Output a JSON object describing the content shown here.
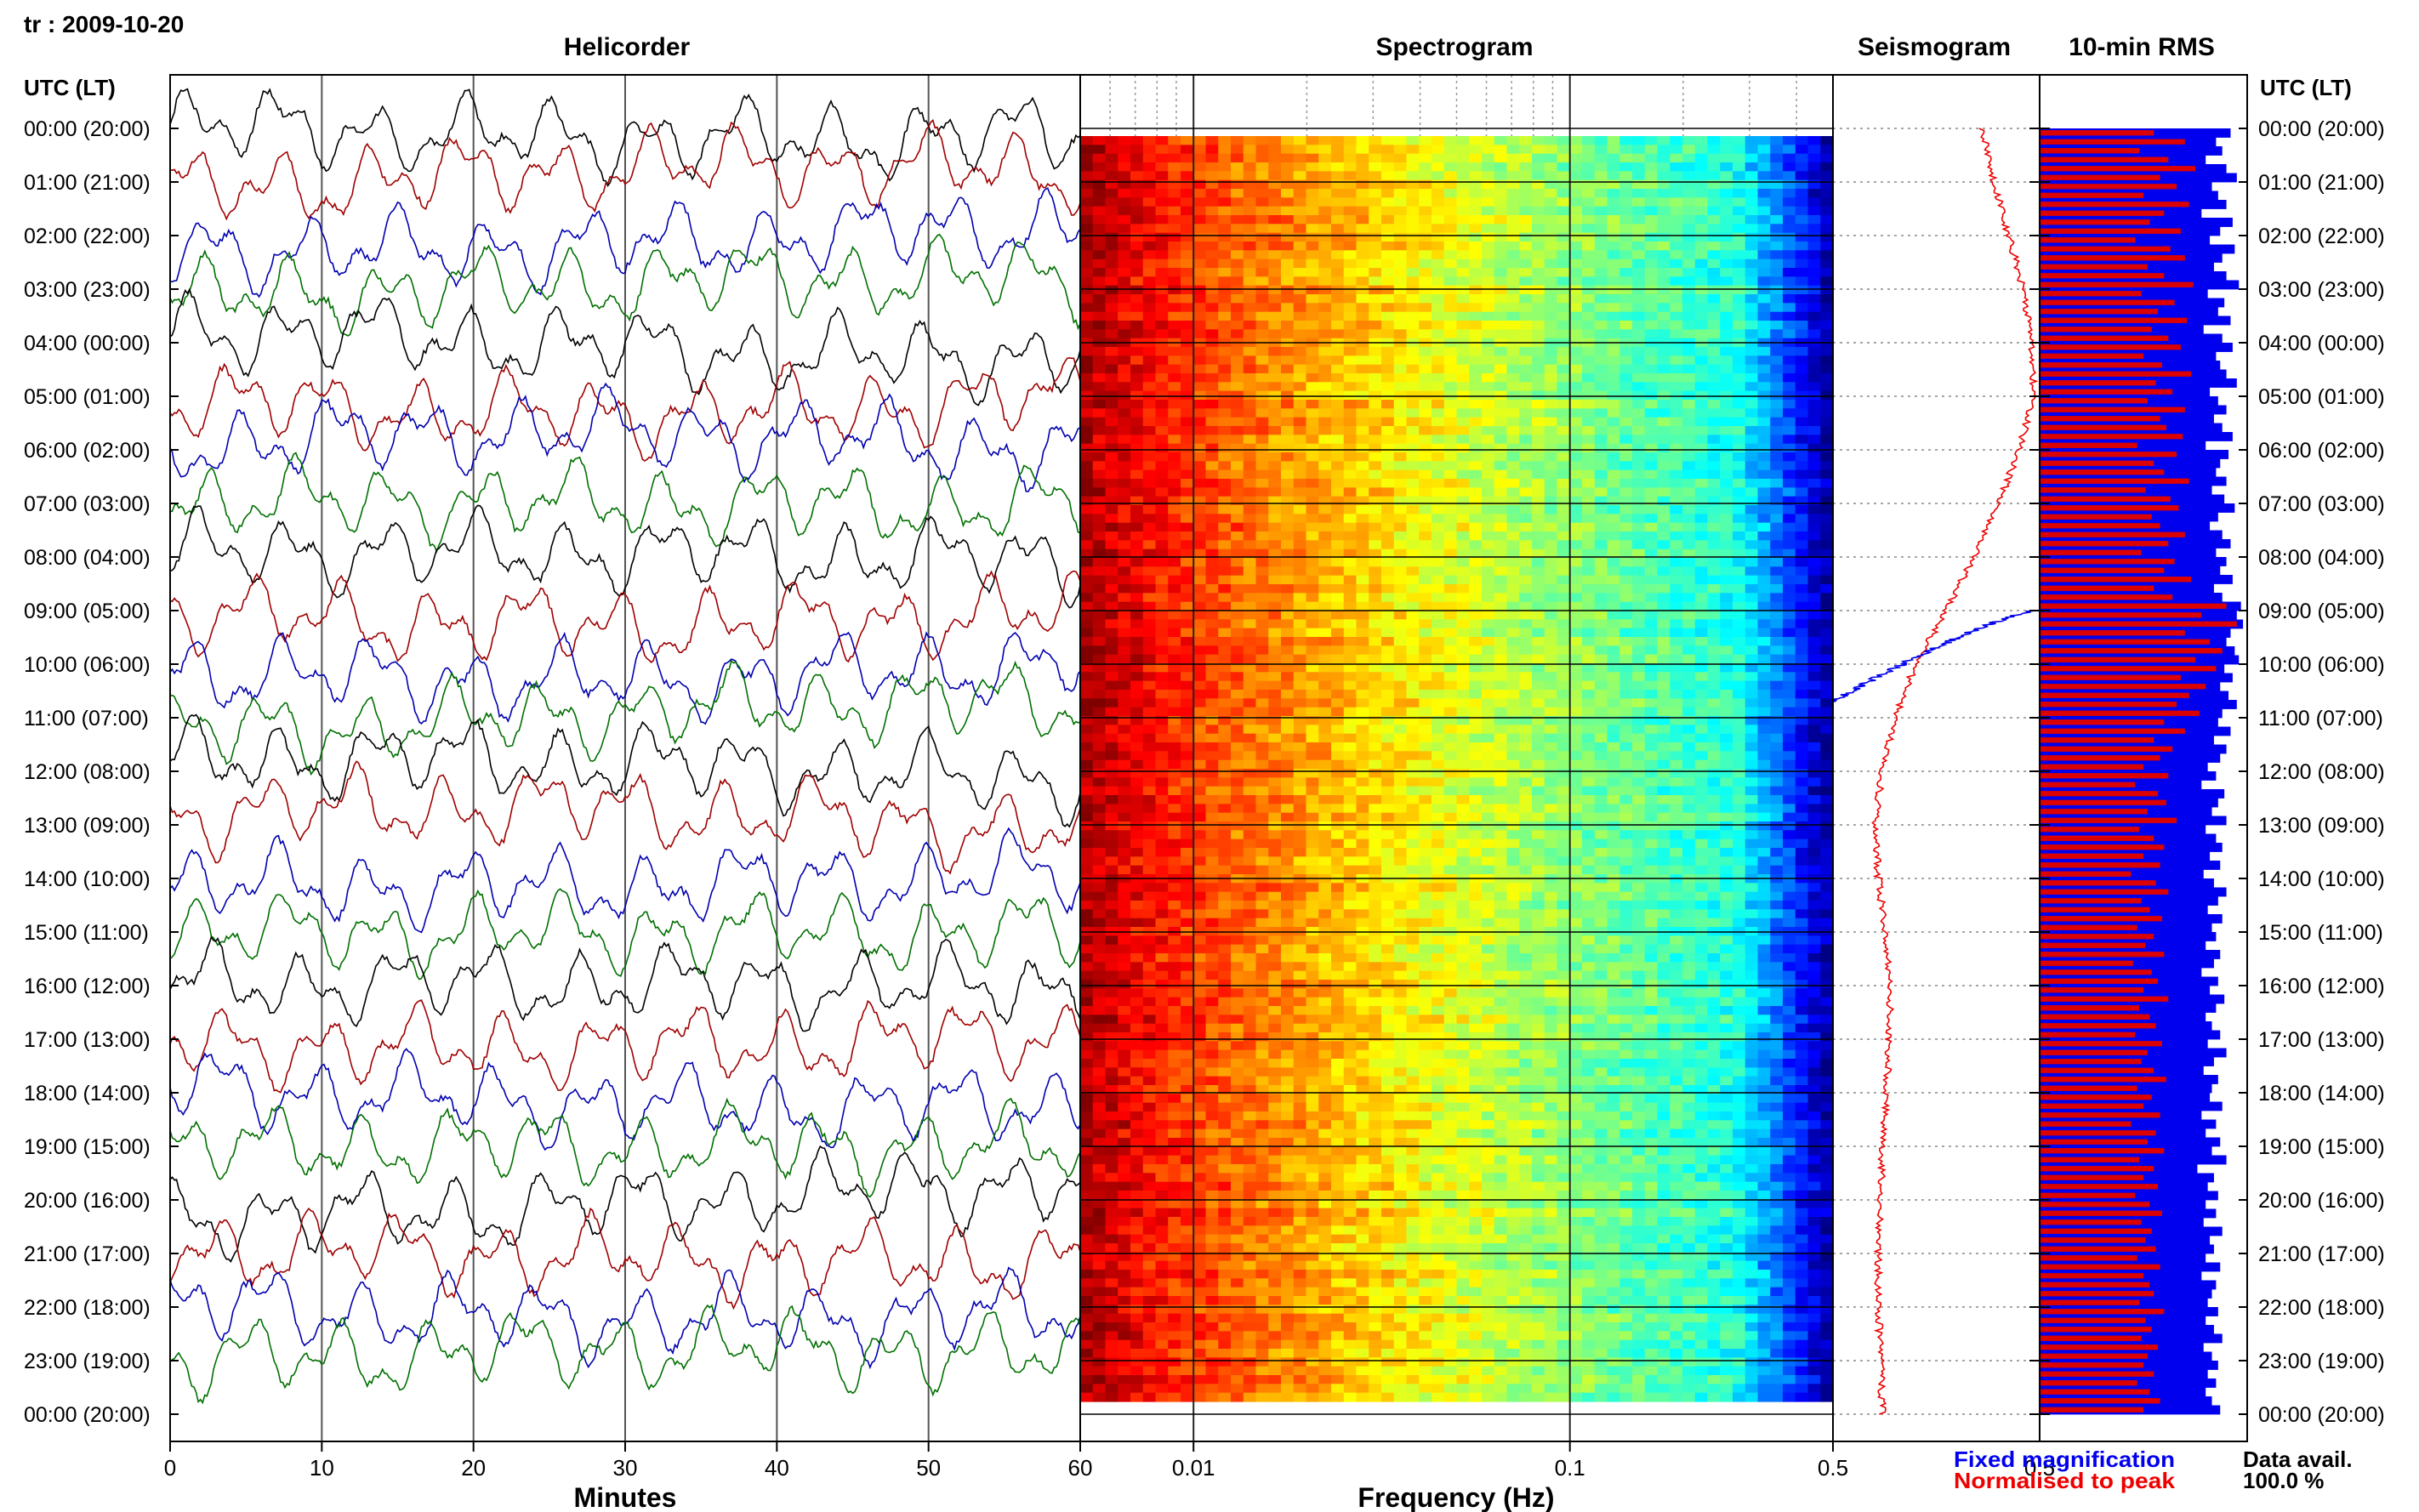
{
  "header": {
    "station_label": "tr : 2009-10-20"
  },
  "panels": {
    "helicorder_title": "Helicorder",
    "spectrogram_title": "Spectrogram",
    "seismogram_title": "Seismogram",
    "rms_title": "10-min RMS"
  },
  "axes": {
    "utc_label_left": "UTC (LT)",
    "utc_label_right": "UTC (LT)",
    "minutes_label": "Minutes",
    "frequency_label": "Frequency (Hz)"
  },
  "legend": {
    "fixed": "Fixed magnification",
    "normalised": "Normalised to peak",
    "data_avail_label": "Data avail.",
    "data_avail_value": "100.0 %"
  },
  "colors": {
    "trace_colors": [
      "#000000",
      "#a00000",
      "#0000b0",
      "#007000"
    ],
    "rms_fixed": "#0000ee",
    "rms_normalised": "#dd0000",
    "seis_normalised": "#ee0000",
    "seis_fixed": "#0000ee"
  },
  "chart_data": [
    {
      "type": "line",
      "name": "helicorder",
      "title": "Helicorder",
      "xlabel": "Minutes",
      "xlim": [
        0,
        60
      ],
      "x_ticks": [
        0,
        10,
        20,
        30,
        40,
        50,
        60
      ],
      "y_ticks": [
        "00:00 (20:00)",
        "01:00 (21:00)",
        "02:00 (22:00)",
        "03:00 (23:00)",
        "04:00 (00:00)",
        "05:00 (01:00)",
        "06:00 (02:00)",
        "07:00 (03:00)",
        "08:00 (04:00)",
        "09:00 (05:00)",
        "10:00 (06:00)",
        "11:00 (07:00)",
        "12:00 (08:00)",
        "13:00 (09:00)",
        "14:00 (10:00)",
        "15:00 (11:00)",
        "16:00 (12:00)",
        "17:00 (13:00)",
        "18:00 (14:00)",
        "19:00 (15:00)",
        "20:00 (16:00)",
        "21:00 (17:00)",
        "22:00 (18:00)",
        "23:00 (19:00)",
        "00:00 (20:00)"
      ],
      "traces": 24
    },
    {
      "type": "heatmap",
      "name": "spectrogram",
      "title": "Spectrogram",
      "xlabel": "Frequency (Hz)",
      "x_scale": "log",
      "xlim": [
        0.005,
        0.5
      ],
      "x_tick_labels": [
        "0.01",
        "0.1",
        "0.5"
      ],
      "edge_tick_labels": [
        "60",
        "0.5"
      ]
    },
    {
      "type": "line",
      "name": "seismogram",
      "title": "Seismogram",
      "series": [
        {
          "name": "Normalised to peak",
          "values": [
            0.72,
            0.78,
            0.85,
            0.92,
            0.96,
            0.97,
            0.9,
            0.8,
            0.68,
            0.55,
            0.4,
            0.3,
            0.24,
            0.2,
            0.22,
            0.25,
            0.28,
            0.27,
            0.26,
            0.24,
            0.23,
            0.22,
            0.22,
            0.23,
            0.24
          ]
        },
        {
          "name": "Fixed magnification",
          "segment": [
            9.0,
            10.7
          ],
          "values": [
            0.97,
            0.0
          ]
        }
      ]
    },
    {
      "type": "bar",
      "name": "rms",
      "title": "10-min RMS",
      "bins": 144,
      "series": [
        {
          "name": "Fixed magnification",
          "values": [
            0.92,
            0.85,
            0.88,
            0.8,
            0.9,
            0.95,
            0.83,
            0.86,
            0.9,
            0.78,
            0.93,
            0.87,
            0.82,
            0.94,
            0.88,
            0.84,
            0.9,
            0.96,
            0.81,
            0.89,
            0.86,
            0.92,
            0.79,
            0.88,
            0.93,
            0.85,
            0.87,
            0.9,
            0.95,
            0.82,
            0.86,
            0.9,
            0.84,
            0.88,
            0.93,
            0.8,
            0.91,
            0.87,
            0.85,
            0.9,
            0.83,
            0.89,
            0.94,
            0.86,
            0.82,
            0.88,
            0.92,
            0.85,
            0.9,
            0.87,
            0.93,
            0.84,
            0.88,
            0.97,
            0.95,
            0.98,
            0.92,
            0.9,
            0.94,
            0.96,
            0.89,
            0.93,
            0.87,
            0.91,
            0.95,
            0.88,
            0.86,
            0.92,
            0.84,
            0.9,
            0.87,
            0.81,
            0.85,
            0.78,
            0.89,
            0.86,
            0.83,
            0.9,
            0.8,
            0.85,
            0.88,
            0.82,
            0.87,
            0.79,
            0.84,
            0.9,
            0.86,
            0.81,
            0.88,
            0.83,
            0.85,
            0.8,
            0.87,
            0.84,
            0.78,
            0.86,
            0.82,
            0.89,
            0.85,
            0.8,
            0.83,
            0.87,
            0.81,
            0.9,
            0.84,
            0.79,
            0.86,
            0.83,
            0.82,
            0.88,
            0.78,
            0.85,
            0.8,
            0.87,
            0.83,
            0.9,
            0.76,
            0.84,
            0.81,
            0.86,
            0.8,
            0.85,
            0.79,
            0.88,
            0.82,
            0.84,
            0.8,
            0.87,
            0.78,
            0.85,
            0.83,
            0.81,
            0.86,
            0.8,
            0.84,
            0.88,
            0.79,
            0.83,
            0.86,
            0.81,
            0.85,
            0.8,
            0.83,
            0.87
          ]
        },
        {
          "name": "Normalised to peak",
          "values": [
            0.55,
            0.7,
            0.48,
            0.62,
            0.75,
            0.58,
            0.66,
            0.5,
            0.72,
            0.6,
            0.53,
            0.68,
            0.46,
            0.63,
            0.7,
            0.52,
            0.6,
            0.74,
            0.49,
            0.65,
            0.57,
            0.71,
            0.54,
            0.62,
            0.68,
            0.5,
            0.59,
            0.73,
            0.56,
            0.64,
            0.52,
            0.7,
            0.58,
            0.61,
            0.69,
            0.47,
            0.66,
            0.55,
            0.6,
            0.72,
            0.51,
            0.63,
            0.67,
            0.54,
            0.58,
            0.7,
            0.62,
            0.49,
            0.65,
            0.6,
            0.73,
            0.55,
            0.64,
            0.9,
            0.78,
            0.95,
            0.7,
            0.82,
            0.88,
            0.75,
            0.85,
            0.68,
            0.8,
            0.72,
            0.66,
            0.77,
            0.6,
            0.7,
            0.55,
            0.64,
            0.58,
            0.5,
            0.62,
            0.46,
            0.57,
            0.61,
            0.52,
            0.66,
            0.48,
            0.55,
            0.6,
            0.5,
            0.58,
            0.44,
            0.56,
            0.62,
            0.49,
            0.53,
            0.59,
            0.47,
            0.55,
            0.51,
            0.6,
            0.45,
            0.54,
            0.57,
            0.5,
            0.62,
            0.48,
            0.53,
            0.56,
            0.46,
            0.59,
            0.52,
            0.49,
            0.55,
            0.61,
            0.47,
            0.54,
            0.5,
            0.58,
            0.44,
            0.56,
            0.52,
            0.6,
            0.48,
            0.55,
            0.5,
            0.57,
            0.46,
            0.53,
            0.59,
            0.49,
            0.54,
            0.51,
            0.56,
            0.47,
            0.58,
            0.5,
            0.53,
            0.55,
            0.48,
            0.6,
            0.51,
            0.54,
            0.49,
            0.57,
            0.52,
            0.5,
            0.55,
            0.47,
            0.53,
            0.58,
            0.5
          ]
        }
      ]
    }
  ]
}
